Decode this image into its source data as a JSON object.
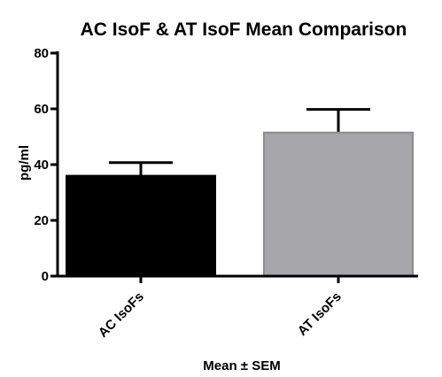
{
  "chart_data": {
    "type": "bar",
    "title": "AC IsoF & AT IsoF Mean Comparison",
    "xlabel": "Mean ± SEM",
    "ylabel": "pg/ml",
    "ylim": [
      0,
      80
    ],
    "yticks": [
      0,
      20,
      40,
      60,
      80
    ],
    "categories": [
      "AC IsoFs",
      "AT IsoFs"
    ],
    "values": [
      36,
      51.5
    ],
    "errors": [
      4.7,
      8.3
    ],
    "colors": [
      "#000000",
      "#a6a6aa"
    ],
    "grid": false,
    "legend": "none"
  }
}
